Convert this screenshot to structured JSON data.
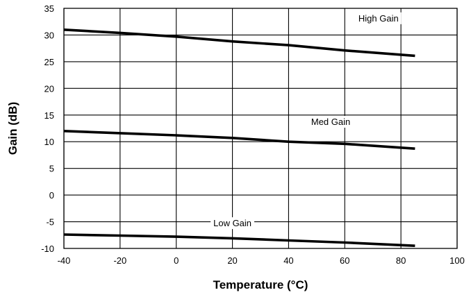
{
  "chart_data": {
    "type": "line",
    "title": "",
    "xlabel": "Temperature (°C)",
    "ylabel": "Gain (dB)",
    "xlim": [
      -40,
      100
    ],
    "ylim": [
      -10,
      35
    ],
    "xticks": [
      -40,
      -20,
      0,
      20,
      40,
      60,
      80,
      100
    ],
    "yticks": [
      -10,
      -5,
      0,
      5,
      10,
      15,
      20,
      25,
      30,
      35
    ],
    "grid": true,
    "legend": "none",
    "series": [
      {
        "name": "High Gain",
        "color": "#000000",
        "x": [
          -40,
          -20,
          0,
          20,
          40,
          60,
          85
        ],
        "y": [
          31.0,
          30.4,
          29.7,
          28.8,
          28.1,
          27.1,
          26.1
        ]
      },
      {
        "name": "Med Gain",
        "color": "#000000",
        "x": [
          -40,
          -20,
          0,
          20,
          40,
          60,
          85
        ],
        "y": [
          12.0,
          11.6,
          11.2,
          10.7,
          10.0,
          9.6,
          8.7
        ]
      },
      {
        "name": "Low Gain",
        "color": "#000000",
        "x": [
          -40,
          -20,
          0,
          20,
          40,
          60,
          85
        ],
        "y": [
          -7.4,
          -7.6,
          -7.8,
          -8.1,
          -8.5,
          -8.9,
          -9.5
        ]
      }
    ]
  }
}
